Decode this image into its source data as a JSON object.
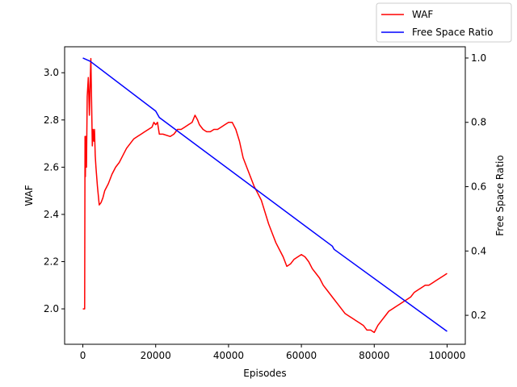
{
  "chart_data": {
    "type": "line",
    "xlabel": "Episodes",
    "ylabel": "WAF",
    "y2label": "Free Space Ratio",
    "xlim": [
      -5000,
      105000
    ],
    "ylim": [
      1.85,
      3.11
    ],
    "y2lim": [
      0.11,
      1.035
    ],
    "x_ticks": [
      0,
      20000,
      40000,
      60000,
      80000,
      100000
    ],
    "x_tick_labels": [
      "0",
      "20000",
      "40000",
      "60000",
      "80000",
      "100000"
    ],
    "y_ticks": [
      2.0,
      2.2,
      2.4,
      2.6,
      2.8,
      3.0
    ],
    "y_tick_labels": [
      "2.0",
      "2.2",
      "2.4",
      "2.6",
      "2.8",
      "3.0"
    ],
    "y2_ticks": [
      0.2,
      0.4,
      0.6,
      0.8,
      1.0
    ],
    "y2_tick_labels": [
      "0.2",
      "0.4",
      "0.6",
      "0.8",
      "1.0"
    ],
    "grid": false,
    "legend_position": "top-right, outside the plot",
    "series": [
      {
        "name": "WAF",
        "axis": "left",
        "color": "#ff0000",
        "x": [
          0,
          500,
          600,
          700,
          800,
          1000,
          1200,
          1500,
          1800,
          2000,
          2200,
          2400,
          2600,
          2800,
          3000,
          3200,
          3400,
          3600,
          4000,
          4500,
          5000,
          5500,
          6000,
          7000,
          8000,
          9000,
          10000,
          11000,
          12000,
          13000,
          14000,
          15000,
          16000,
          17000,
          18000,
          19000,
          19500,
          20000,
          20500,
          21000,
          22000,
          24000,
          25000,
          26000,
          27000,
          28000,
          29000,
          30000,
          30800,
          31500,
          32000,
          33000,
          34000,
          35000,
          36000,
          37000,
          38000,
          39000,
          40000,
          41000,
          42000,
          43000,
          44000,
          45000,
          46000,
          47000,
          48000,
          49000,
          50000,
          51000,
          52000,
          53000,
          54000,
          55000,
          56000,
          57000,
          58000,
          59000,
          60000,
          61000,
          62000,
          63000,
          64000,
          65000,
          66000,
          67000,
          68000,
          69000,
          70000,
          71000,
          72000,
          73000,
          74000,
          75000,
          76000,
          77000,
          78000,
          79000,
          80000,
          81000,
          82000,
          83000,
          84000,
          85000,
          86000,
          87000,
          88000,
          89000,
          90000,
          91000,
          92000,
          93000,
          94000,
          95000,
          96000,
          97000,
          98000,
          99000,
          100000
        ],
        "values": [
          2.0,
          2.0,
          2.73,
          2.56,
          2.73,
          2.6,
          2.9,
          2.98,
          2.82,
          2.95,
          3.06,
          2.88,
          2.69,
          2.76,
          2.71,
          2.76,
          2.65,
          2.6,
          2.52,
          2.44,
          2.45,
          2.47,
          2.5,
          2.53,
          2.57,
          2.6,
          2.62,
          2.65,
          2.68,
          2.7,
          2.72,
          2.73,
          2.74,
          2.75,
          2.76,
          2.77,
          2.79,
          2.78,
          2.79,
          2.74,
          2.74,
          2.73,
          2.74,
          2.76,
          2.76,
          2.77,
          2.78,
          2.79,
          2.82,
          2.8,
          2.78,
          2.76,
          2.75,
          2.75,
          2.76,
          2.76,
          2.77,
          2.78,
          2.79,
          2.79,
          2.76,
          2.71,
          2.64,
          2.6,
          2.56,
          2.52,
          2.49,
          2.46,
          2.41,
          2.36,
          2.32,
          2.28,
          2.25,
          2.22,
          2.18,
          2.19,
          2.21,
          2.22,
          2.23,
          2.22,
          2.2,
          2.17,
          2.15,
          2.13,
          2.1,
          2.08,
          2.06,
          2.04,
          2.02,
          2.0,
          1.98,
          1.97,
          1.96,
          1.95,
          1.94,
          1.93,
          1.91,
          1.91,
          1.9,
          1.93,
          1.95,
          1.97,
          1.99,
          2.0,
          2.01,
          2.02,
          2.03,
          2.04,
          2.05,
          2.07,
          2.08,
          2.09,
          2.1,
          2.1,
          2.11,
          2.12,
          2.13,
          2.14,
          2.15
        ]
      },
      {
        "name": "Free Space Ratio",
        "axis": "right",
        "color": "#0000ff",
        "x": [
          0,
          2000,
          20000,
          21000,
          68500,
          69000,
          100000
        ],
        "values": [
          1.0,
          0.99,
          0.835,
          0.815,
          0.415,
          0.405,
          0.15
        ]
      }
    ]
  }
}
